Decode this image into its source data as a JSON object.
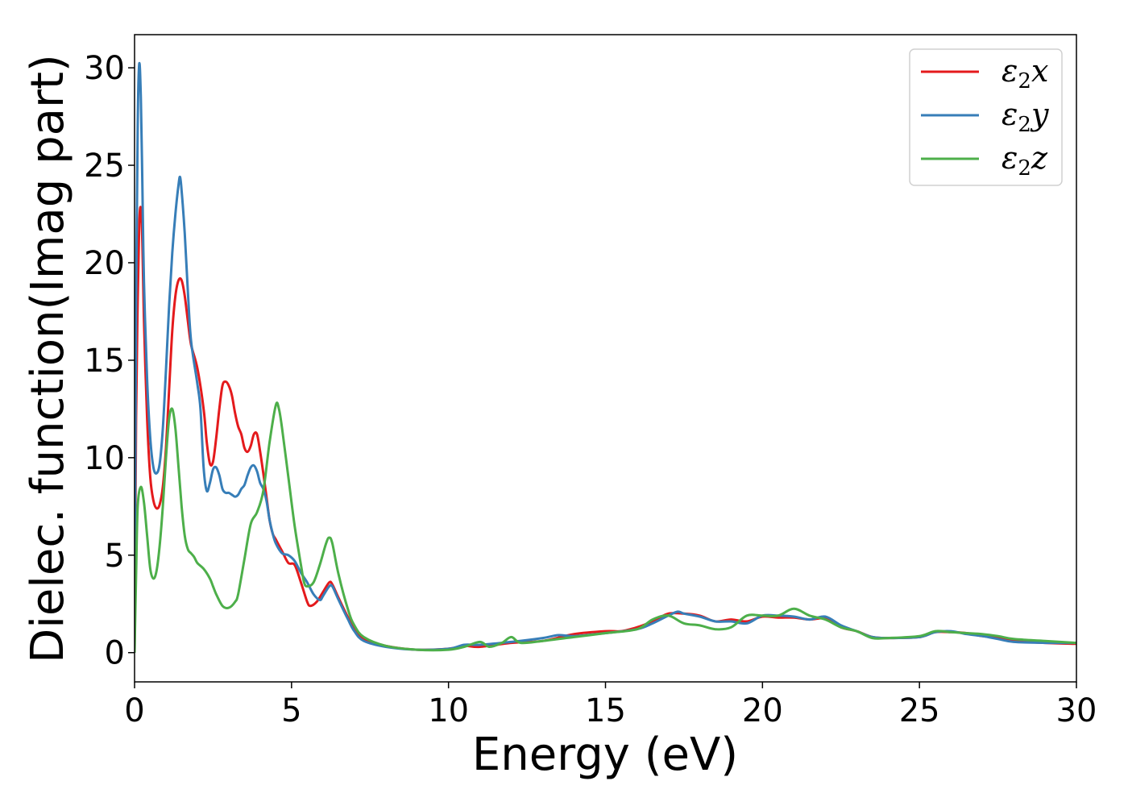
{
  "chart_data": {
    "type": "line",
    "title": "",
    "xlabel": "Energy (eV)",
    "ylabel": "Dielec. function(Imag part)",
    "xlim": [
      0,
      30
    ],
    "ylim": [
      -1.5,
      31.7
    ],
    "x_ticks": [
      0,
      5,
      10,
      15,
      20,
      25,
      30
    ],
    "y_ticks": [
      0,
      5,
      10,
      15,
      20,
      25,
      30
    ],
    "x_tick_labels": [
      "0",
      "5",
      "10",
      "15",
      "20",
      "25",
      "30"
    ],
    "y_tick_labels": [
      "0",
      "5",
      "10",
      "15",
      "20",
      "25",
      "30"
    ],
    "grid": false,
    "legend_position": "top-right",
    "series": [
      {
        "name": "ε2x",
        "legend": {
          "symbol": "ε",
          "sub": "2",
          "axis": "x"
        },
        "color": "#e41a1c",
        "points": [
          [
            0,
            0
          ],
          [
            0.05,
            12
          ],
          [
            0.1,
            18
          ],
          [
            0.15,
            22
          ],
          [
            0.2,
            22.8
          ],
          [
            0.25,
            21
          ],
          [
            0.3,
            17
          ],
          [
            0.4,
            12
          ],
          [
            0.5,
            9
          ],
          [
            0.6,
            7.8
          ],
          [
            0.7,
            7.4
          ],
          [
            0.8,
            7.6
          ],
          [
            0.9,
            8.5
          ],
          [
            1.0,
            10.5
          ],
          [
            1.1,
            13.5
          ],
          [
            1.2,
            16.5
          ],
          [
            1.3,
            18.3
          ],
          [
            1.4,
            19.1
          ],
          [
            1.5,
            19.1
          ],
          [
            1.6,
            18.3
          ],
          [
            1.7,
            17
          ],
          [
            1.8,
            15.8
          ],
          [
            2.0,
            14.6
          ],
          [
            2.2,
            12.5
          ],
          [
            2.3,
            10.8
          ],
          [
            2.4,
            9.7
          ],
          [
            2.5,
            9.8
          ],
          [
            2.6,
            11
          ],
          [
            2.7,
            12.5
          ],
          [
            2.8,
            13.7
          ],
          [
            2.9,
            13.9
          ],
          [
            3.0,
            13.7
          ],
          [
            3.1,
            13.2
          ],
          [
            3.2,
            12.3
          ],
          [
            3.3,
            11.6
          ],
          [
            3.4,
            11.2
          ],
          [
            3.5,
            10.5
          ],
          [
            3.6,
            10.3
          ],
          [
            3.7,
            10.6
          ],
          [
            3.8,
            11.2
          ],
          [
            3.9,
            11.2
          ],
          [
            4.0,
            10.3
          ],
          [
            4.1,
            9.2
          ],
          [
            4.2,
            8
          ],
          [
            4.3,
            6.8
          ],
          [
            4.4,
            6.1
          ],
          [
            4.5,
            5.8
          ],
          [
            4.7,
            5.2
          ],
          [
            4.9,
            4.6
          ],
          [
            5.1,
            4.5
          ],
          [
            5.3,
            3.6
          ],
          [
            5.5,
            2.6
          ],
          [
            5.6,
            2.4
          ],
          [
            5.8,
            2.6
          ],
          [
            6.0,
            3.1
          ],
          [
            6.2,
            3.6
          ],
          [
            6.3,
            3.5
          ],
          [
            6.5,
            2.8
          ],
          [
            6.8,
            1.8
          ],
          [
            7.0,
            1.2
          ],
          [
            7.3,
            0.7
          ],
          [
            8,
            0.35
          ],
          [
            9,
            0.15
          ],
          [
            10,
            0.2
          ],
          [
            10.5,
            0.35
          ],
          [
            11,
            0.3
          ],
          [
            12,
            0.5
          ],
          [
            13,
            0.6
          ],
          [
            14,
            0.95
          ],
          [
            15,
            1.1
          ],
          [
            15.5,
            1.1
          ],
          [
            16,
            1.3
          ],
          [
            16.5,
            1.6
          ],
          [
            17,
            2
          ],
          [
            17.5,
            2
          ],
          [
            18,
            1.9
          ],
          [
            18.5,
            1.6
          ],
          [
            19,
            1.7
          ],
          [
            19.5,
            1.6
          ],
          [
            20,
            1.85
          ],
          [
            20.5,
            1.8
          ],
          [
            21,
            1.8
          ],
          [
            21.5,
            1.7
          ],
          [
            22,
            1.75
          ],
          [
            22.5,
            1.3
          ],
          [
            23,
            1.1
          ],
          [
            23.5,
            0.8
          ],
          [
            24,
            0.75
          ],
          [
            25,
            0.8
          ],
          [
            25.5,
            1.05
          ],
          [
            26,
            1.05
          ],
          [
            26.5,
            1
          ],
          [
            27,
            0.85
          ],
          [
            27.5,
            0.75
          ],
          [
            28,
            0.6
          ],
          [
            29,
            0.5
          ],
          [
            30,
            0.45
          ]
        ]
      },
      {
        "name": "ε2y",
        "legend": {
          "symbol": "ε",
          "sub": "2",
          "axis": "y"
        },
        "color": "#377eb8",
        "points": [
          [
            0,
            0
          ],
          [
            0.05,
            18
          ],
          [
            0.1,
            27
          ],
          [
            0.15,
            30.2
          ],
          [
            0.2,
            28.5
          ],
          [
            0.25,
            24
          ],
          [
            0.3,
            19
          ],
          [
            0.4,
            14
          ],
          [
            0.5,
            11
          ],
          [
            0.6,
            9.5
          ],
          [
            0.7,
            9.2
          ],
          [
            0.8,
            9.7
          ],
          [
            0.9,
            11.5
          ],
          [
            1.0,
            14.5
          ],
          [
            1.1,
            17.8
          ],
          [
            1.2,
            20.5
          ],
          [
            1.3,
            22.5
          ],
          [
            1.4,
            24
          ],
          [
            1.45,
            24.4
          ],
          [
            1.5,
            23.7
          ],
          [
            1.6,
            21.5
          ],
          [
            1.7,
            18.5
          ],
          [
            1.8,
            16
          ],
          [
            2.0,
            13.8
          ],
          [
            2.1,
            12.5
          ],
          [
            2.2,
            9.5
          ],
          [
            2.3,
            8.3
          ],
          [
            2.4,
            8.7
          ],
          [
            2.5,
            9.4
          ],
          [
            2.6,
            9.5
          ],
          [
            2.7,
            9.1
          ],
          [
            2.8,
            8.4
          ],
          [
            2.9,
            8.2
          ],
          [
            3.0,
            8.2
          ],
          [
            3.1,
            8.1
          ],
          [
            3.2,
            8
          ],
          [
            3.3,
            8.1
          ],
          [
            3.4,
            8.4
          ],
          [
            3.5,
            8.6
          ],
          [
            3.6,
            9.1
          ],
          [
            3.7,
            9.5
          ],
          [
            3.8,
            9.6
          ],
          [
            3.9,
            9.3
          ],
          [
            4.0,
            8.7
          ],
          [
            4.1,
            8.4
          ],
          [
            4.2,
            7.8
          ],
          [
            4.3,
            6.8
          ],
          [
            4.4,
            6.1
          ],
          [
            4.5,
            5.6
          ],
          [
            4.7,
            5.1
          ],
          [
            4.9,
            5
          ],
          [
            5.1,
            4.7
          ],
          [
            5.3,
            4.1
          ],
          [
            5.5,
            3.6
          ],
          [
            5.7,
            3
          ],
          [
            5.9,
            2.7
          ],
          [
            6.0,
            2.9
          ],
          [
            6.2,
            3.4
          ],
          [
            6.3,
            3.4
          ],
          [
            6.5,
            2.7
          ],
          [
            6.8,
            1.7
          ],
          [
            7.0,
            1.1
          ],
          [
            7.3,
            0.6
          ],
          [
            8,
            0.3
          ],
          [
            9,
            0.15
          ],
          [
            10,
            0.2
          ],
          [
            10.5,
            0.4
          ],
          [
            11,
            0.4
          ],
          [
            12,
            0.55
          ],
          [
            13,
            0.75
          ],
          [
            13.5,
            0.9
          ],
          [
            14,
            0.85
          ],
          [
            15,
            1.0
          ],
          [
            16,
            1.2
          ],
          [
            16.5,
            1.5
          ],
          [
            17,
            1.9
          ],
          [
            17.3,
            2.1
          ],
          [
            17.5,
            2
          ],
          [
            18,
            1.85
          ],
          [
            18.5,
            1.6
          ],
          [
            19,
            1.6
          ],
          [
            19.5,
            1.5
          ],
          [
            20,
            1.9
          ],
          [
            20.5,
            1.9
          ],
          [
            21,
            1.85
          ],
          [
            21.5,
            1.7
          ],
          [
            22,
            1.85
          ],
          [
            22.5,
            1.4
          ],
          [
            23,
            1.1
          ],
          [
            23.5,
            0.8
          ],
          [
            24,
            0.75
          ],
          [
            25,
            0.8
          ],
          [
            25.5,
            1.05
          ],
          [
            26,
            1.1
          ],
          [
            26.5,
            0.95
          ],
          [
            27,
            0.85
          ],
          [
            27.5,
            0.7
          ],
          [
            28,
            0.55
          ],
          [
            29,
            0.5
          ],
          [
            30,
            0.5
          ]
        ]
      },
      {
        "name": "ε2z",
        "legend": {
          "symbol": "ε",
          "sub": "2",
          "axis": "z"
        },
        "color": "#4daf4a",
        "points": [
          [
            0,
            0
          ],
          [
            0.05,
            4
          ],
          [
            0.1,
            7.5
          ],
          [
            0.2,
            8.5
          ],
          [
            0.3,
            7.7
          ],
          [
            0.4,
            6
          ],
          [
            0.5,
            4.3
          ],
          [
            0.6,
            3.8
          ],
          [
            0.7,
            4.2
          ],
          [
            0.8,
            5.5
          ],
          [
            0.9,
            7.5
          ],
          [
            1.0,
            10
          ],
          [
            1.1,
            12
          ],
          [
            1.2,
            12.5
          ],
          [
            1.3,
            11.5
          ],
          [
            1.4,
            9.5
          ],
          [
            1.5,
            7.5
          ],
          [
            1.6,
            6
          ],
          [
            1.7,
            5.3
          ],
          [
            1.8,
            5.1
          ],
          [
            1.9,
            4.9
          ],
          [
            2.0,
            4.6
          ],
          [
            2.2,
            4.3
          ],
          [
            2.4,
            3.8
          ],
          [
            2.5,
            3.4
          ],
          [
            2.6,
            3
          ],
          [
            2.8,
            2.4
          ],
          [
            3.0,
            2.3
          ],
          [
            3.2,
            2.6
          ],
          [
            3.3,
            3
          ],
          [
            3.5,
            4.8
          ],
          [
            3.7,
            6.6
          ],
          [
            3.9,
            7.2
          ],
          [
            4.1,
            8.3
          ],
          [
            4.3,
            10.8
          ],
          [
            4.5,
            12.7
          ],
          [
            4.6,
            12.5
          ],
          [
            4.7,
            11.5
          ],
          [
            4.9,
            9
          ],
          [
            5.1,
            6.5
          ],
          [
            5.3,
            4.5
          ],
          [
            5.4,
            3.6
          ],
          [
            5.5,
            3.4
          ],
          [
            5.7,
            3.6
          ],
          [
            5.9,
            4.5
          ],
          [
            6.1,
            5.6
          ],
          [
            6.2,
            5.9
          ],
          [
            6.3,
            5.6
          ],
          [
            6.5,
            4
          ],
          [
            6.8,
            2.2
          ],
          [
            7.0,
            1.4
          ],
          [
            7.3,
            0.8
          ],
          [
            8,
            0.35
          ],
          [
            9,
            0.15
          ],
          [
            10,
            0.15
          ],
          [
            10.5,
            0.3
          ],
          [
            11,
            0.55
          ],
          [
            11.3,
            0.3
          ],
          [
            11.7,
            0.5
          ],
          [
            12,
            0.8
          ],
          [
            12.3,
            0.5
          ],
          [
            13,
            0.6
          ],
          [
            14,
            0.8
          ],
          [
            15,
            1.0
          ],
          [
            16,
            1.2
          ],
          [
            16.5,
            1.7
          ],
          [
            17,
            1.9
          ],
          [
            17.5,
            1.5
          ],
          [
            18,
            1.4
          ],
          [
            18.5,
            1.2
          ],
          [
            19,
            1.3
          ],
          [
            19.5,
            1.9
          ],
          [
            20,
            1.9
          ],
          [
            20.5,
            1.9
          ],
          [
            21,
            2.25
          ],
          [
            21.5,
            1.9
          ],
          [
            22,
            1.7
          ],
          [
            22.5,
            1.3
          ],
          [
            23,
            1.1
          ],
          [
            23.5,
            0.75
          ],
          [
            24,
            0.75
          ],
          [
            25,
            0.85
          ],
          [
            25.5,
            1.1
          ],
          [
            26,
            1.05
          ],
          [
            26.5,
            1
          ],
          [
            27,
            0.95
          ],
          [
            27.5,
            0.85
          ],
          [
            28,
            0.7
          ],
          [
            29,
            0.6
          ],
          [
            30,
            0.5
          ]
        ]
      }
    ]
  }
}
